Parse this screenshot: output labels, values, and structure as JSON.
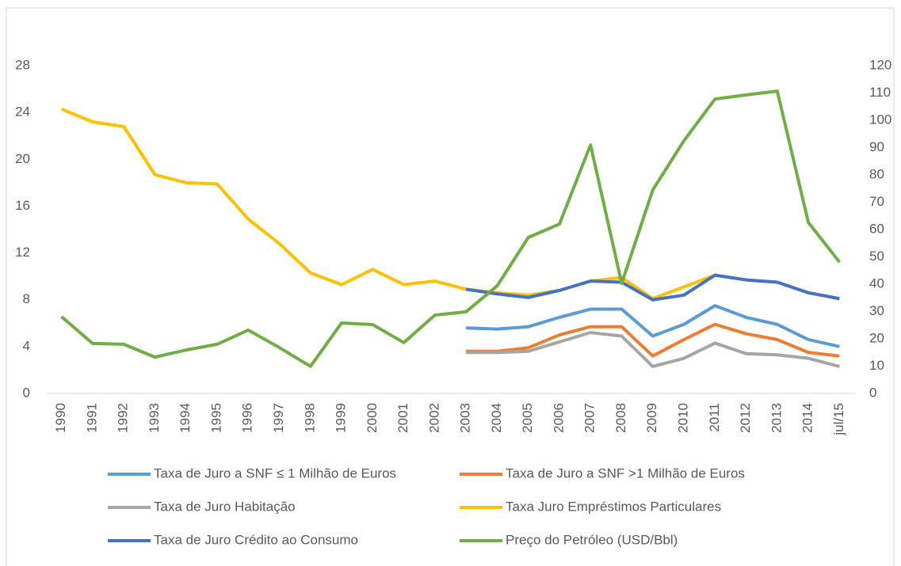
{
  "chart_data": {
    "type": "line",
    "categories": [
      "1990",
      "1991",
      "1992",
      "1993",
      "1994",
      "1995",
      "1996",
      "1997",
      "1998",
      "1999",
      "2000",
      "2001",
      "2002",
      "2003",
      "2004",
      "2005",
      "2006",
      "2007",
      "2008",
      "2009",
      "2010",
      "2011",
      "2012",
      "2013",
      "2014",
      "jul/15"
    ],
    "ylim": [
      0,
      28
    ],
    "yticks": [
      0,
      4,
      8,
      12,
      16,
      20,
      24,
      28
    ],
    "y2lim": [
      0,
      120
    ],
    "y2ticks": [
      0,
      10,
      20,
      30,
      40,
      50,
      60,
      70,
      80,
      90,
      100,
      110,
      120
    ],
    "grid": false,
    "legend": "bottom",
    "series": [
      {
        "name": "Taxa de Juro a SNF ≤ 1 Milhão de Euros",
        "color": "#5b9bd5",
        "values": [
          null,
          null,
          null,
          null,
          null,
          null,
          null,
          null,
          null,
          null,
          null,
          null,
          null,
          5.6,
          5.5,
          5.7,
          6.5,
          7.2,
          7.2,
          4.9,
          5.9,
          7.5,
          6.5,
          5.9,
          4.6,
          4.0
        ]
      },
      {
        "name": "Taxa de Juro a SNF >1 Milhão de Euros",
        "color": "#ed7d31",
        "values": [
          null,
          null,
          null,
          null,
          null,
          null,
          null,
          null,
          null,
          null,
          null,
          null,
          null,
          3.6,
          3.6,
          3.9,
          5.0,
          5.7,
          5.7,
          3.2,
          4.6,
          5.9,
          5.1,
          4.6,
          3.5,
          3.2
        ]
      },
      {
        "name": "Taxa de Juro  Habitação",
        "color": "#a5a5a5",
        "values": [
          null,
          null,
          null,
          null,
          null,
          null,
          null,
          null,
          null,
          null,
          null,
          null,
          null,
          3.5,
          3.5,
          3.6,
          4.4,
          5.2,
          4.9,
          2.3,
          3.0,
          4.3,
          3.4,
          3.3,
          3.0,
          2.3
        ]
      },
      {
        "name": "Taxa Juro Empréstimos Particulares",
        "color": "#ffc000",
        "values": [
          24.3,
          23.2,
          22.8,
          18.7,
          18.0,
          17.9,
          14.9,
          12.8,
          10.3,
          9.3,
          10.6,
          9.3,
          9.6,
          8.9,
          8.6,
          8.4,
          8.8,
          9.6,
          9.9,
          8.1,
          9.1,
          10.1,
          9.7,
          9.5,
          8.6,
          8.1
        ]
      },
      {
        "name": "Taxa de Juro Crédito ao Consumo",
        "color": "#4472c4",
        "values": [
          null,
          null,
          null,
          null,
          null,
          null,
          null,
          null,
          null,
          null,
          null,
          null,
          null,
          8.9,
          8.5,
          8.2,
          8.8,
          9.6,
          9.5,
          8.0,
          8.4,
          10.1,
          9.7,
          9.5,
          8.6,
          8.1
        ]
      },
      {
        "name": "Preço do Petróleo (USD/Bbl)",
        "color": "#70ad47",
        "axis": "y2",
        "values": [
          28.1,
          18.3,
          18.0,
          13.3,
          15.9,
          18.0,
          23.2,
          16.8,
          9.9,
          25.8,
          25.2,
          18.6,
          28.7,
          29.9,
          39.4,
          57.1,
          62.0,
          91.0,
          40.3,
          74.5,
          92.5,
          107.8,
          109.3,
          110.7,
          62.6,
          48.1
        ]
      }
    ]
  }
}
